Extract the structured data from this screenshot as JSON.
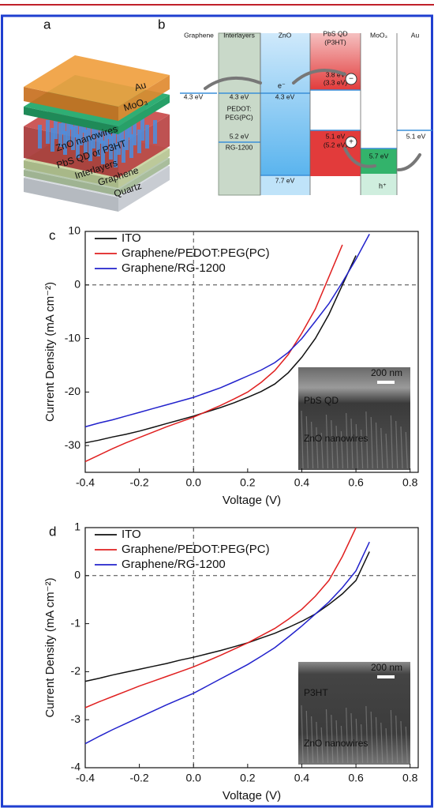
{
  "diagram_a": {
    "label": "a",
    "layers": [
      "Au",
      "MoO₃",
      "ZnO nanowires",
      "PbS QD or P3HT",
      "Interlayers",
      "Graphene",
      "Quartz"
    ]
  },
  "diagram_b": {
    "label": "b",
    "columns": [
      "Graphene",
      "Interlayers",
      "ZnO",
      "PbS QD",
      "(P3HT)",
      "MoO₃",
      "Au"
    ],
    "levels": [
      "4.3 eV",
      "4.3 eV",
      "PEDOT:",
      "PEG(PC)",
      "5.2 eV",
      "RG-1200",
      "4.3 eV",
      "7.7 eV",
      "3.8 eV",
      "(3.3 eV)",
      "5.1 eV",
      "(5.2 eV)",
      "5.7 eV",
      "5.1 eV"
    ],
    "carriers": [
      "e⁻",
      "h⁺"
    ]
  },
  "chart_data": [
    {
      "type": "line",
      "panel_label": "c",
      "xlabel": "Voltage (V)",
      "ylabel": "Current Density (mA cm⁻²)",
      "x": [
        -0.4,
        -0.35,
        -0.3,
        -0.25,
        -0.2,
        -0.15,
        -0.1,
        -0.05,
        0,
        0.05,
        0.1,
        0.15,
        0.2,
        0.25,
        0.3,
        0.35,
        0.4,
        0.45,
        0.5,
        0.55,
        0.6,
        0.65
      ],
      "series": [
        {
          "name": "ITO",
          "color": "#111111",
          "values": [
            -29.5,
            -29,
            -28.4,
            -27.9,
            -27.3,
            -26.6,
            -25.9,
            -25.2,
            -24.5,
            -23.7,
            -22.9,
            -22,
            -21,
            -19.9,
            -18.5,
            -16.4,
            -13.5,
            -10,
            -5.5,
            0,
            5.5,
            null
          ]
        },
        {
          "name": "Graphene/PEDOT:PEG(PC)",
          "color": "#e02020",
          "values": [
            -33,
            -31.8,
            -30.6,
            -29.5,
            -28.5,
            -27.5,
            -26.5,
            -25.6,
            -24.7,
            -23.6,
            -22.5,
            -21.3,
            -20,
            -18.2,
            -16,
            -13,
            -9,
            -4.5,
            1.5,
            7.5,
            null,
            null
          ]
        },
        {
          "name": "Graphene/RG-1200",
          "color": "#2222cc",
          "values": [
            -26.5,
            -25.8,
            -25.2,
            -24.5,
            -23.8,
            -23.1,
            -22.4,
            -21.7,
            -21,
            -20.1,
            -19.2,
            -18.1,
            -17,
            -15.9,
            -14.5,
            -12.6,
            -10,
            -6.8,
            -3.5,
            0.5,
            4.8,
            9.5
          ]
        }
      ],
      "xlim": [
        -0.4,
        0.83
      ],
      "ylim": [
        -35,
        10
      ],
      "xticks": [
        -0.4,
        -0.2,
        {
          "value": 0,
          "label": "0.0"
        },
        0.2,
        0.4,
        0.6,
        0.8
      ],
      "yticks": [
        -30,
        -20,
        -10,
        0,
        10
      ],
      "legend": "upper left",
      "inset_labels": [
        "200 nm",
        "PbS QD",
        "ZnO nanowires"
      ]
    },
    {
      "type": "line",
      "panel_label": "d",
      "xlabel": "Voltage (V)",
      "ylabel": "Current Density (mA cm⁻²)",
      "x": [
        -0.4,
        -0.35,
        -0.3,
        -0.25,
        -0.2,
        -0.15,
        -0.1,
        -0.05,
        0,
        0.05,
        0.1,
        0.15,
        0.2,
        0.25,
        0.3,
        0.35,
        0.4,
        0.45,
        0.5,
        0.55,
        0.6,
        0.65
      ],
      "series": [
        {
          "name": "ITO",
          "color": "#111111",
          "values": [
            -2.2,
            -2.14,
            -2.07,
            -2.01,
            -1.95,
            -1.89,
            -1.83,
            -1.76,
            -1.7,
            -1.63,
            -1.56,
            -1.48,
            -1.4,
            -1.3,
            -1.2,
            -1.08,
            -0.95,
            -0.8,
            -0.6,
            -0.38,
            -0.1,
            0.5
          ]
        },
        {
          "name": "Graphene/PEDOT:PEG(PC)",
          "color": "#e02020",
          "values": [
            -2.75,
            -2.63,
            -2.52,
            -2.41,
            -2.3,
            -2.2,
            -2.1,
            -2,
            -1.9,
            -1.78,
            -1.66,
            -1.53,
            -1.4,
            -1.25,
            -1.1,
            -0.91,
            -0.7,
            -0.43,
            -0.1,
            0.4,
            1,
            null
          ]
        },
        {
          "name": "Graphene/RG-1200",
          "color": "#2222cc",
          "values": [
            -3.5,
            -3.35,
            -3.21,
            -3.08,
            -2.95,
            -2.82,
            -2.69,
            -2.57,
            -2.45,
            -2.3,
            -2.15,
            -2,
            -1.85,
            -1.68,
            -1.5,
            -1.28,
            -1.05,
            -0.8,
            -0.55,
            -0.25,
            0.1,
            0.7
          ]
        }
      ],
      "xlim": [
        -0.4,
        0.83
      ],
      "ylim": [
        -4,
        1
      ],
      "xticks": [
        -0.4,
        -0.2,
        {
          "value": 0,
          "label": "0.0"
        },
        0.2,
        0.4,
        0.6,
        0.8
      ],
      "yticks": [
        -4,
        -3,
        -2,
        -1,
        0,
        1
      ],
      "legend": "upper left",
      "inset_labels": [
        "200 nm",
        "P3HT",
        "ZnO nanowires"
      ]
    }
  ]
}
